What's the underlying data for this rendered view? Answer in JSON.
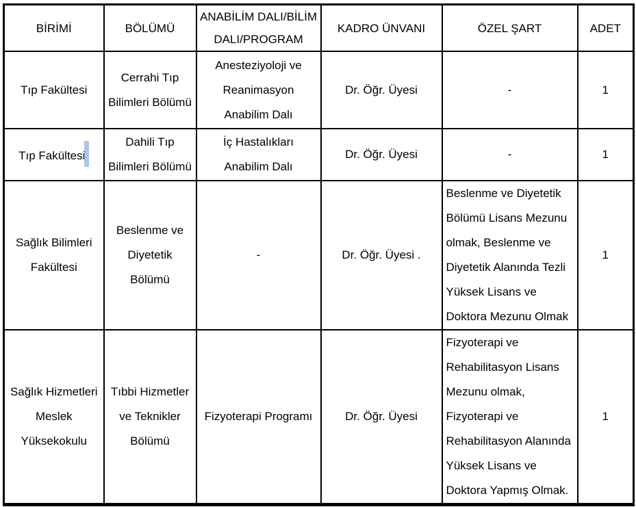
{
  "document": {
    "background": "#ffffff",
    "text_color": "#000000",
    "border_color": "#000000"
  },
  "table": {
    "headers": {
      "birimi": "BİRİMİ",
      "bolumu": "BÖLÜMÜ",
      "anabilim_dali": "ANABİLİM DALI/BİLİM\nDALI/PROGRAM",
      "kadro_unvani": "KADRO ÜNVANI",
      "ozel_sart": "ÖZEL ŞART",
      "adet": "ADET"
    },
    "rows": [
      {
        "birimi": "Tıp Fakültesi",
        "bolumu": "Cerrahi Tıp\nBilimleri Bölümü",
        "anabilim_dali": "Anesteziyoloji ve\nReanimasyon\nAnabilim Dalı",
        "kadro_unvani": "Dr. Öğr. Üyesi",
        "ozel_sart": "-",
        "adet": "1"
      },
      {
        "birimi": "Tıp Fakültesi",
        "bolumu": "Dahili Tıp\nBilimleri Bölümü",
        "anabilim_dali": "İç Hastalıkları\nAnabilim Dalı",
        "kadro_unvani": "Dr. Öğr. Üyesi",
        "ozel_sart": "-",
        "adet": "1"
      },
      {
        "birimi": "Sağlık Bilimleri\nFakültesi",
        "bolumu": "Beslenme ve\nDiyetetik\nBölümü",
        "anabilim_dali": "-",
        "kadro_unvani": "Dr. Öğr. Üyesi .",
        "ozel_sart": "Beslenme ve Diyetetik\nBölümü Lisans Mezunu\nolmak, Beslenme ve\nDiyetetik Alanında Tezli\nYüksek Lisans ve\nDoktora Mezunu Olmak",
        "adet": "1"
      },
      {
        "birimi": "Sağlık Hizmetleri\nMeslek\nYüksekokulu",
        "bolumu": "Tıbbi Hizmetler\nve Teknikler\nBölümü",
        "anabilim_dali": "Fizyoterapi Programı",
        "kadro_unvani": "Dr. Öğr. Üyesi",
        "ozel_sart": "Fizyoterapi ve\nRehabilitasyon Lisans\nMezunu olmak,\nFizyoterapi ve\nRehabilitasyon Alanında\nYüksek Lisans ve\nDoktora Yapmış Olmak.",
        "adet": "1"
      }
    ],
    "selection_highlight": {
      "row_index": 1,
      "column": "birimi",
      "color": "#a8c6e8"
    }
  }
}
